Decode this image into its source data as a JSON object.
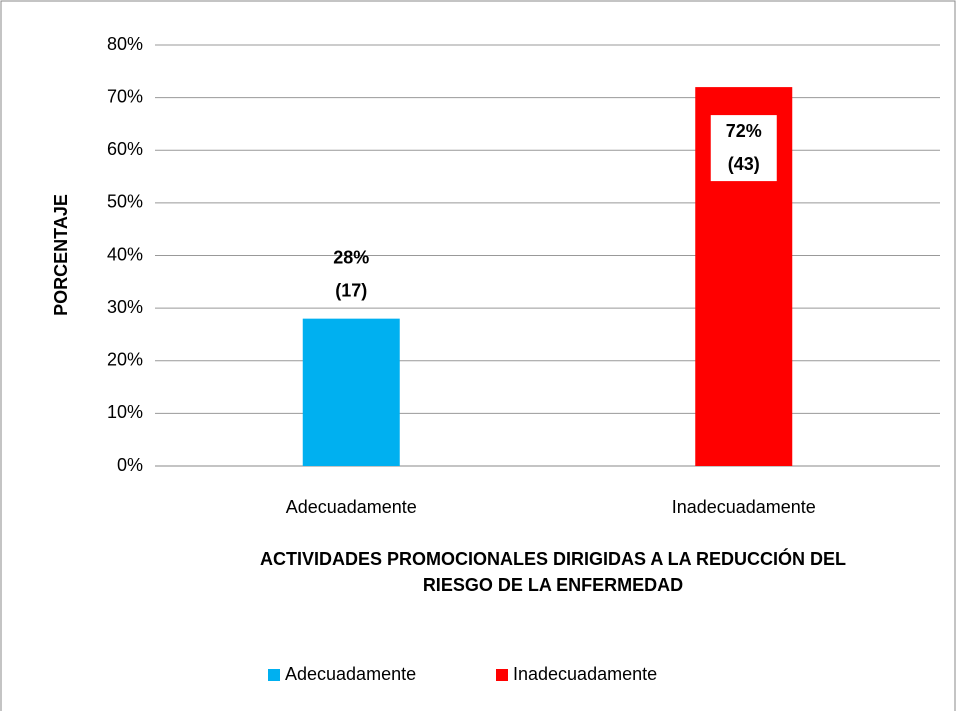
{
  "chart_data": {
    "type": "bar",
    "categories": [
      "Adecuadamente",
      "Inadecuadamente"
    ],
    "values": [
      28,
      72
    ],
    "value_labels": [
      "28%",
      "72%"
    ],
    "count_labels": [
      "(17)",
      "(43)"
    ],
    "colors": [
      "#00b0f0",
      "#ff0000"
    ],
    "y_label": "PORCENTAJE",
    "x_label": [
      "ACTIVIDADES PROMOCIONALES DIRIGIDAS A LA REDUCCIÓN DEL",
      "RIESGO DE LA ENFERMEDAD"
    ],
    "ylim": [
      0,
      80
    ],
    "yticks": [
      {
        "value": 0,
        "label": "0%"
      },
      {
        "value": 10,
        "label": "10%"
      },
      {
        "value": 20,
        "label": "20%"
      },
      {
        "value": 30,
        "label": "30%"
      },
      {
        "value": 40,
        "label": "40%"
      },
      {
        "value": 50,
        "label": "50%"
      },
      {
        "value": 60,
        "label": "60%"
      },
      {
        "value": 70,
        "label": "70%"
      },
      {
        "value": 80,
        "label": "80%"
      }
    ],
    "grid": true,
    "legend": "bottom"
  }
}
